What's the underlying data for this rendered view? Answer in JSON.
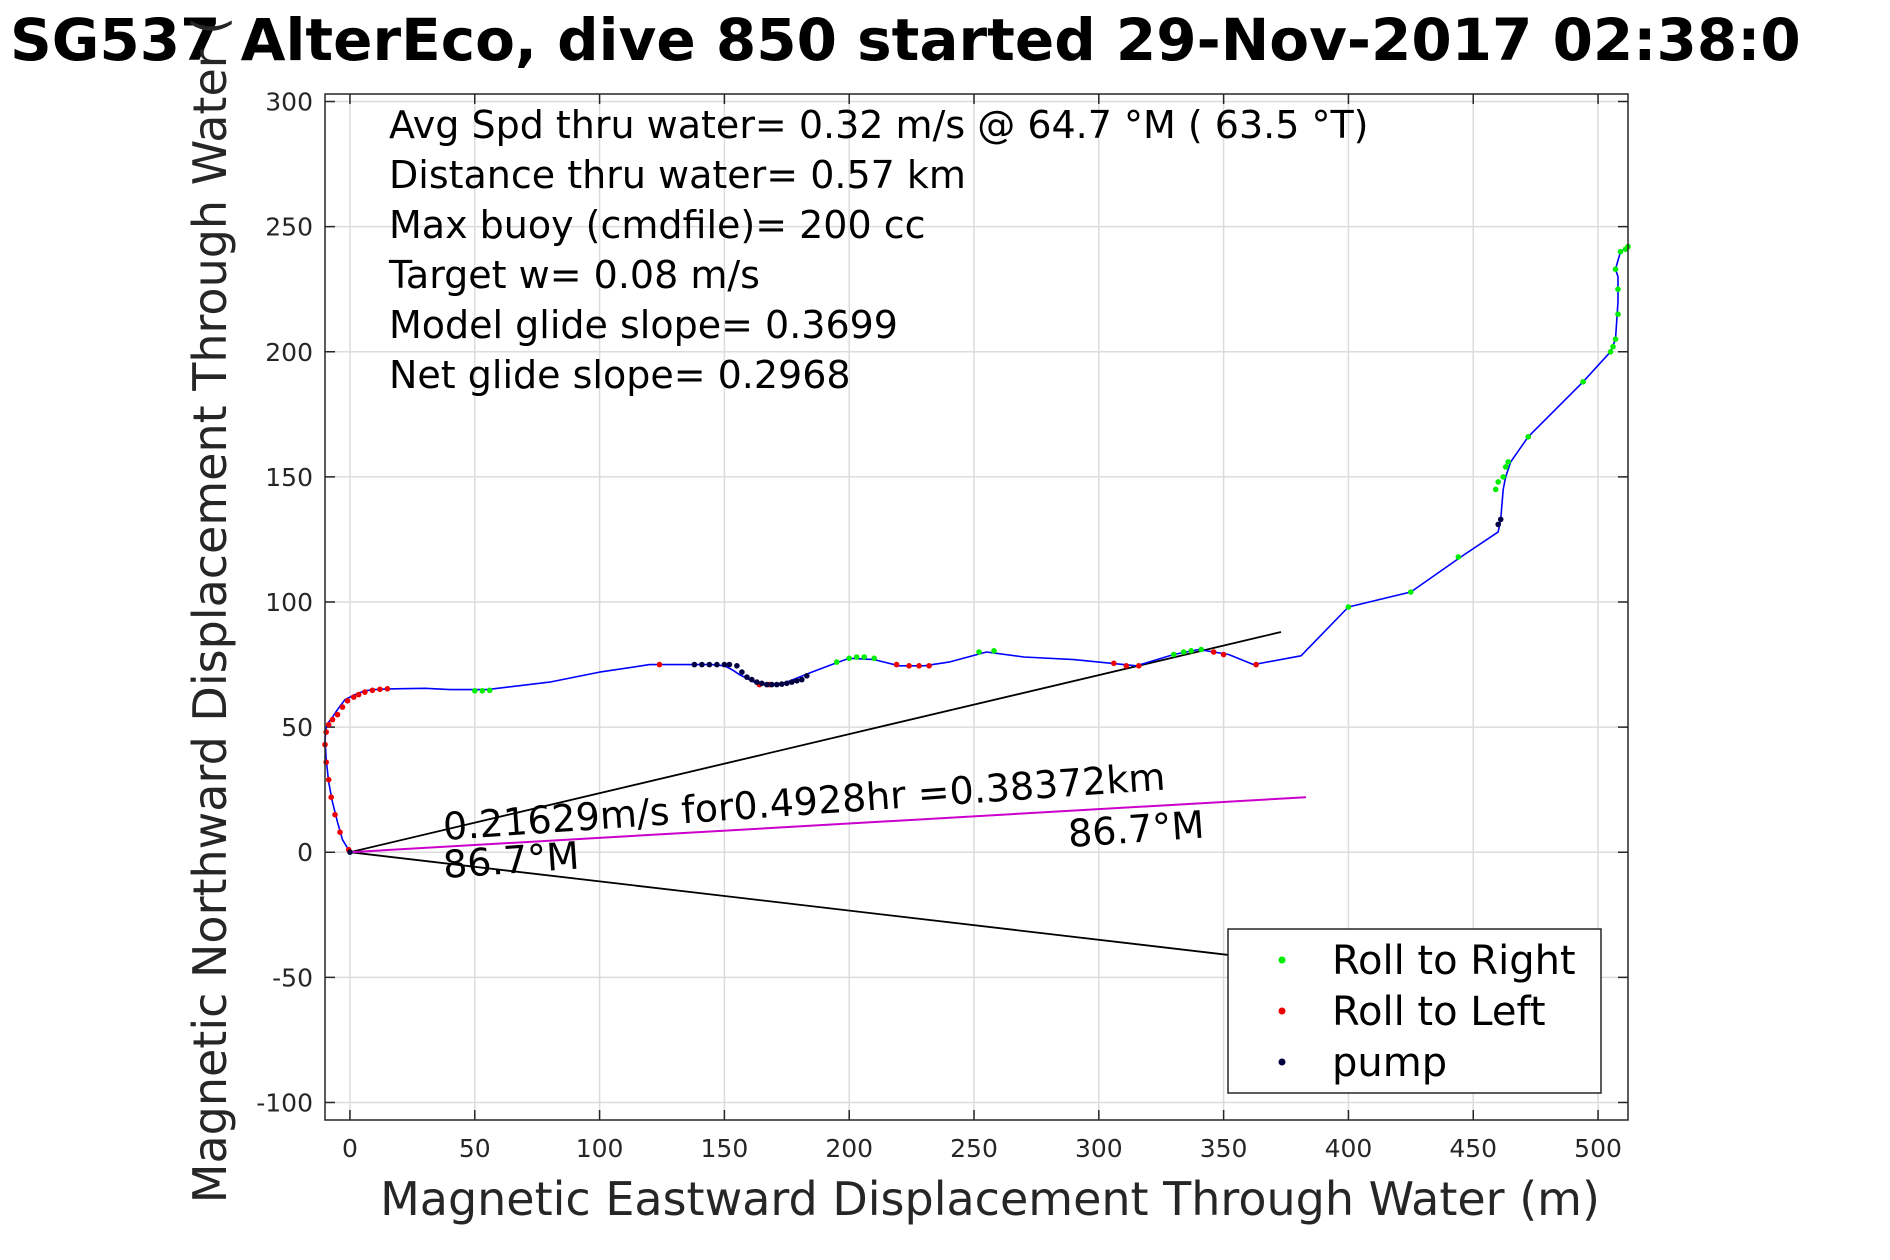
{
  "chart_data": {
    "type": "line",
    "title": "SG537 AlterEco, dive 850 started 29-Nov-2017 02:38:0",
    "xlabel": "Magnetic Eastward Displacement Through Water (m)",
    "ylabel": "Magnetic Northward Displacement Through Water (",
    "xlim": [
      -10,
      512
    ],
    "ylim": [
      -107,
      303
    ],
    "grid": true,
    "xticks": [
      0,
      50,
      100,
      150,
      200,
      250,
      300,
      350,
      400,
      450,
      500
    ],
    "yticks": [
      -100,
      -50,
      0,
      50,
      100,
      150,
      200,
      250,
      300
    ],
    "stats_lines": [
      "Avg Spd thru water=  0.32 m/s @  64.7 °M ( 63.5 °T)",
      "Distance thru water=  0.57 km",
      "Max buoy (cmdfile)= 200 cc",
      "Target w= 0.08 m/s",
      "Model glide slope= 0.3699",
      "Net glide slope= 0.2968"
    ],
    "annotations": {
      "current_text": "0.21629m/s for0.4928hr =0.38372km",
      "heading_start": "86.7°M",
      "heading_end": "86.7°M"
    },
    "colors": {
      "track": "#0000ff",
      "current": "#cc00cc",
      "cone": "#000000",
      "roll_right": "#00ee00",
      "roll_left": "#ee0000",
      "pump": "#000040"
    },
    "track": {
      "x": [
        0,
        -3,
        -5,
        -7,
        -8.5,
        -9.5,
        -10,
        -9.5,
        -8.5,
        -7,
        -5,
        -2,
        2,
        6,
        10,
        14,
        18,
        30,
        40,
        55,
        80,
        100,
        120,
        135,
        145,
        150,
        153,
        156,
        158,
        162,
        166,
        170,
        175,
        180,
        185,
        193,
        200,
        210,
        220,
        230,
        240,
        255,
        270,
        290,
        315,
        330,
        340,
        352,
        362,
        381,
        400,
        425,
        445,
        460,
        461,
        462,
        463,
        465,
        472,
        494,
        505,
        507,
        508,
        508,
        507,
        509,
        512
      ],
      "y": [
        0,
        5,
        12,
        20,
        28,
        37,
        45,
        50,
        52,
        54,
        57,
        61,
        63,
        64.5,
        65,
        65.2,
        65.3,
        65.5,
        65,
        65,
        68,
        72,
        75,
        75,
        75,
        74.5,
        73,
        71,
        70,
        68,
        67,
        67,
        68,
        70,
        72,
        75,
        77.5,
        77,
        74.5,
        74.5,
        76,
        80,
        78,
        77,
        74.5,
        79,
        81,
        79,
        75,
        78.5,
        98,
        104,
        118,
        128,
        133,
        145,
        150,
        156,
        166,
        188,
        200,
        205,
        220,
        230,
        233,
        240,
        242
      ]
    },
    "roll_to_right": {
      "x": [
        50,
        53,
        56,
        195,
        200,
        203,
        206,
        210,
        252,
        258,
        330,
        334,
        337,
        341,
        400,
        425,
        444,
        459,
        460,
        462,
        463,
        464,
        472,
        494,
        505,
        506,
        507,
        508,
        508,
        507,
        509,
        511,
        512
      ],
      "y": [
        64.5,
        64.5,
        64.7,
        76,
        77.5,
        78,
        78,
        77.5,
        80,
        80.5,
        79,
        80,
        80.5,
        81,
        98,
        104,
        118,
        145,
        148,
        150,
        154,
        156,
        166,
        188,
        200,
        202,
        205,
        215,
        225,
        233,
        240,
        241,
        242
      ]
    },
    "roll_to_left": {
      "x": [
        -0.5,
        -4,
        -6,
        -7.5,
        -8.5,
        -9.5,
        -10,
        -9.5,
        -8.5,
        -7,
        -5,
        -3,
        -1,
        1.5,
        3.5,
        6,
        9,
        12,
        15,
        124,
        164,
        168,
        219,
        224,
        228,
        232,
        306,
        311,
        316,
        346,
        350,
        363
      ],
      "y": [
        1,
        8,
        15,
        22,
        29,
        36,
        43,
        48,
        51,
        53,
        55,
        58,
        60.5,
        62,
        63,
        64,
        64.7,
        65.1,
        65.3,
        75,
        67,
        67,
        75,
        74.5,
        74.5,
        74.5,
        75.5,
        74.5,
        74.5,
        80,
        79,
        75
      ]
    },
    "pump": {
      "x": [
        0,
        138,
        141,
        144,
        147,
        150,
        152,
        155,
        157,
        159,
        161,
        163,
        165,
        167,
        169,
        171,
        173,
        175,
        177,
        179,
        181,
        183,
        460,
        461
      ],
      "y": [
        0,
        75,
        75,
        75,
        75,
        75,
        75,
        74.5,
        72,
        70,
        69,
        68,
        67.5,
        67,
        67,
        67,
        67.2,
        67.5,
        68,
        68.5,
        69,
        70.5,
        131,
        133
      ]
    },
    "current_vector": {
      "x": [
        0,
        383
      ],
      "y": [
        0,
        22
      ]
    },
    "cone_upper": {
      "x": [
        0,
        373
      ],
      "y": [
        0,
        88
      ]
    },
    "cone_lower": {
      "x": [
        0,
        360
      ],
      "y": [
        0,
        -42
      ]
    },
    "legend": {
      "location": "bottom-right",
      "entries": [
        "Roll to Right",
        "Roll to Left",
        "pump"
      ]
    }
  }
}
